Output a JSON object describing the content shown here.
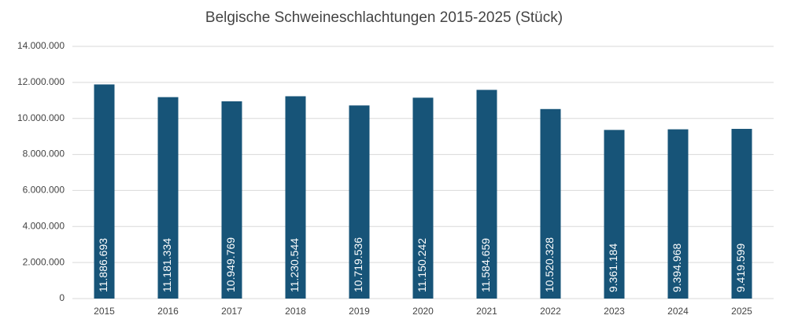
{
  "chart_data": {
    "type": "bar",
    "title": "Belgische Schweineschlachtungen 2015-2025 (Stück)",
    "categories": [
      "2015",
      "2016",
      "2017",
      "2018",
      "2019",
      "2020",
      "2021",
      "2022",
      "2023",
      "2024",
      "2025"
    ],
    "values": [
      11886693,
      11181334,
      10949769,
      11230544,
      10719536,
      11150242,
      11584659,
      10520328,
      9361184,
      9394968,
      9419599
    ],
    "value_labels": [
      "11.886.693",
      "11.181.334",
      "10.949.769",
      "11.230.544",
      "10.719.536",
      "11.150.242",
      "11.584.659",
      "10.520.328",
      "9.361.184",
      "9.394.968",
      "9.419.599"
    ],
    "color": "#175478",
    "ylim": [
      0,
      14000000
    ],
    "yticks": [
      0,
      {
        "value": 2000000,
        "label": "2.000.000"
      },
      {
        "value": 4000000,
        "label": "4.000.000"
      },
      {
        "value": 6000000,
        "label": "6.000.000"
      },
      {
        "value": 8000000,
        "label": "8.000.000"
      },
      {
        "value": 10000000,
        "label": "10.000.000"
      },
      {
        "value": 12000000,
        "label": "12.000.000"
      },
      {
        "value": 14000000,
        "label": "14.000.000"
      }
    ],
    "grid": true
  }
}
